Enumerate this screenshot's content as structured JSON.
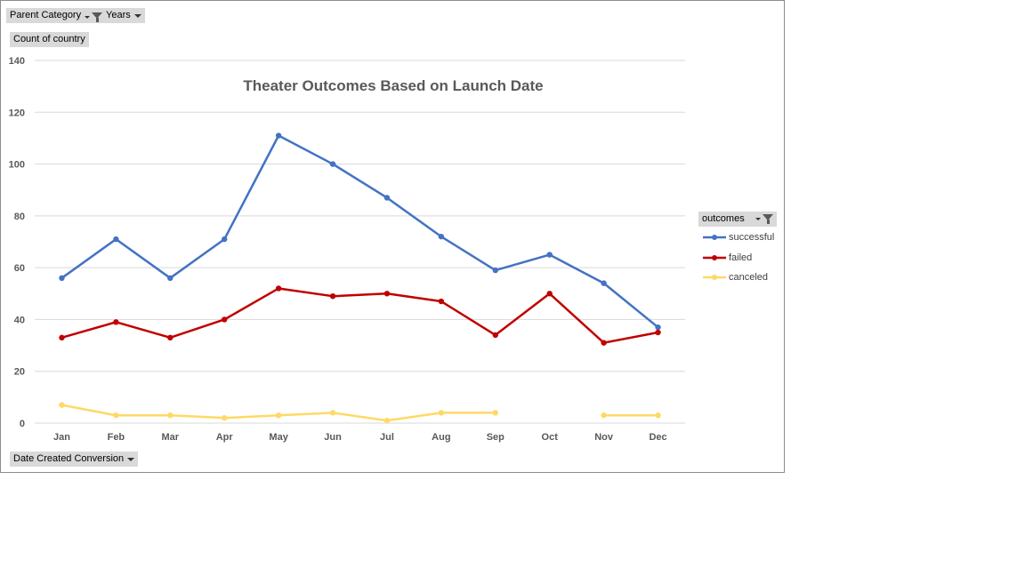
{
  "filters": {
    "parent_category": "Parent Category",
    "years": "Years",
    "value_field": "Count of country",
    "axis_field": "Date Created Conversion"
  },
  "legend": {
    "field": "outcomes"
  },
  "colors": {
    "successful": "#4472c4",
    "failed": "#c00000",
    "canceled": "#ffd966",
    "grid": "#d9d9d9",
    "axis_text": "#595959"
  },
  "chart_data": {
    "type": "line",
    "title": "Theater Outcomes Based on Launch Date",
    "xlabel": "",
    "ylabel": "",
    "categories": [
      "Jan",
      "Feb",
      "Mar",
      "Apr",
      "May",
      "Jun",
      "Jul",
      "Aug",
      "Sep",
      "Oct",
      "Nov",
      "Dec"
    ],
    "ylim": [
      0,
      140
    ],
    "yticks": [
      0,
      20,
      40,
      60,
      80,
      100,
      120,
      140
    ],
    "grid": true,
    "legend_position": "right",
    "series": [
      {
        "name": "successful",
        "values": [
          56,
          71,
          56,
          71,
          111,
          100,
          87,
          72,
          59,
          65,
          54,
          37
        ]
      },
      {
        "name": "failed",
        "values": [
          33,
          39,
          33,
          40,
          52,
          49,
          50,
          47,
          34,
          50,
          31,
          35
        ]
      },
      {
        "name": "canceled",
        "values": [
          7,
          3,
          3,
          2,
          3,
          4,
          1,
          4,
          4,
          null,
          3,
          3
        ]
      }
    ]
  }
}
